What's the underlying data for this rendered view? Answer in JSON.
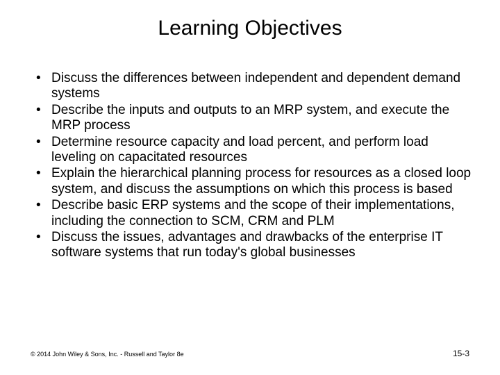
{
  "title": "Learning Objectives",
  "bullets": [
    "Discuss the differences between independent and dependent demand systems",
    "Describe the inputs and outputs to an MRP system, and execute the MRP process",
    "Determine resource capacity and load percent, and perform load leveling on capacitated resources",
    "Explain the hierarchical planning process for resources as a closed loop system, and discuss the assumptions on which this process is based",
    "Describe basic ERP systems and the scope of their implementations, including the connection to SCM, CRM and PLM",
    "Discuss the issues, advantages and drawbacks of the enterprise IT software systems that run today's global businesses"
  ],
  "copyright": "© 2014 John Wiley & Sons, Inc. - Russell and Taylor 8e",
  "pagenum": "15-3",
  "colors": {
    "background": "#ffffff",
    "text": "#000000"
  },
  "fontsize": {
    "title": 30,
    "body": 19,
    "copyright": 9,
    "pagenum": 12
  }
}
